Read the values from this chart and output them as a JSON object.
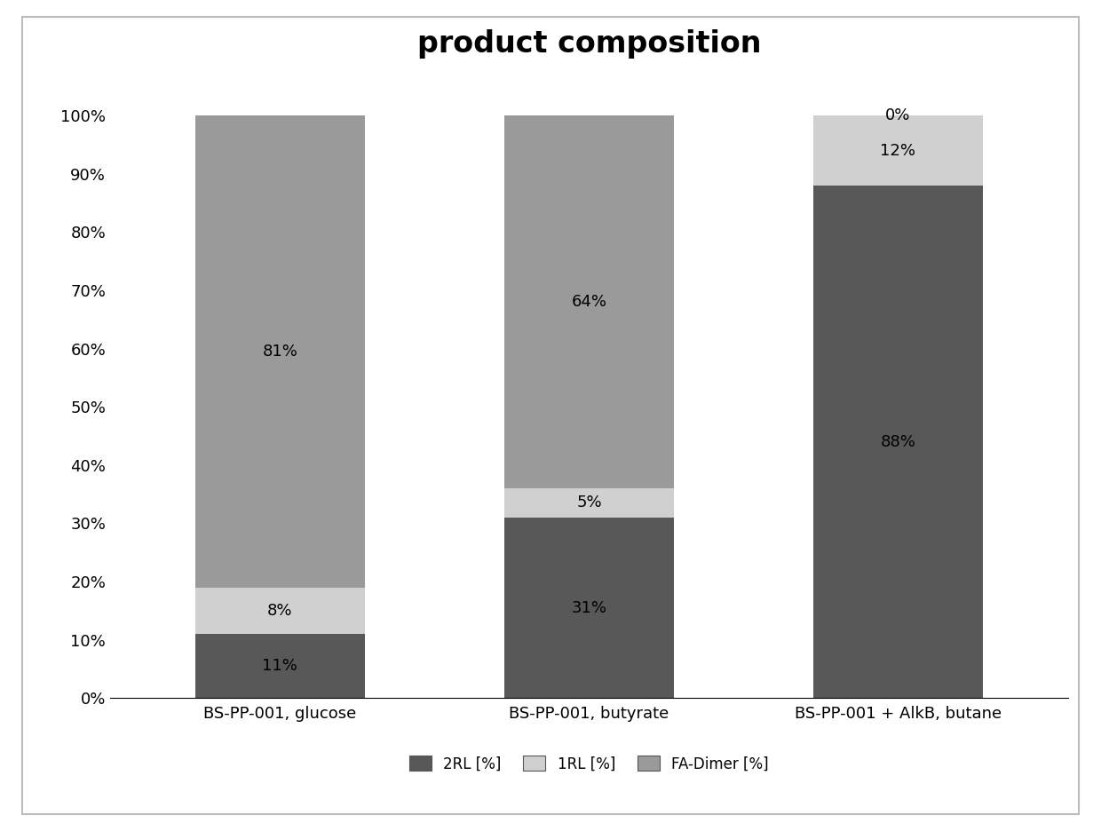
{
  "title": "product composition",
  "categories": [
    "BS-PP-001, glucose",
    "BS-PP-001, butyrate",
    "BS-PP-001 + AlkB, butane"
  ],
  "series": {
    "2RL [%]": [
      11,
      31,
      88
    ],
    "1RL [%]": [
      8,
      5,
      12
    ],
    "FA-Dimer [%]": [
      81,
      64,
      0
    ]
  },
  "colors": {
    "2RL [%]": "#585858",
    "1RL [%]": "#d0d0d0",
    "FA-Dimer [%]": "#9a9a9a"
  },
  "bar_width": 0.55,
  "ylim": [
    0,
    107
  ],
  "yticks": [
    0,
    10,
    20,
    30,
    40,
    50,
    60,
    70,
    80,
    90,
    100
  ],
  "ytick_labels": [
    "0%",
    "10%",
    "20%",
    "30%",
    "40%",
    "50%",
    "60%",
    "70%",
    "80%",
    "90%",
    "100%"
  ],
  "title_fontsize": 24,
  "tick_fontsize": 13,
  "label_fontsize": 13,
  "legend_fontsize": 12,
  "background_color": "#ffffff",
  "figure_background": "#ffffff",
  "border_color": "#bbbbbb"
}
